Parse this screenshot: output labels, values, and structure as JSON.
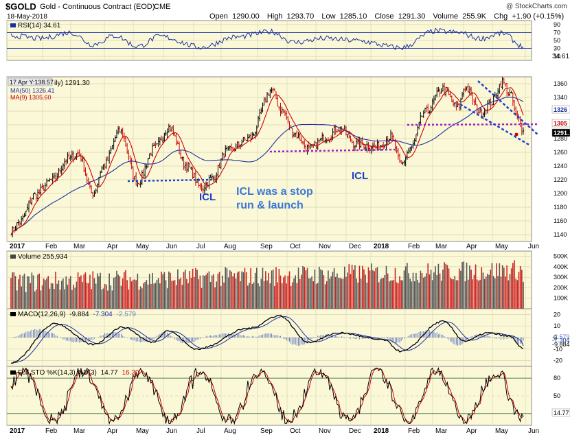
{
  "header": {
    "symbol": "$GOLD",
    "name": "Gold - Continuous Contract (EOD)",
    "exchange": "CME",
    "date": "18-May-2018",
    "watermark": "@ StockCharts.com",
    "open_label": "Open",
    "open": "1290.00",
    "high_label": "High",
    "high": "1293.70",
    "low_label": "Low",
    "low": "1285.10",
    "close_label": "Close",
    "close": "1291.30",
    "volume_label": "Volume",
    "volume": "255.9K",
    "chg_label": "Chg",
    "chg": "+1.90 (+0.15%)"
  },
  "colors": {
    "panel_bg": "#fbf8d8",
    "grid": "#d9d5b0",
    "price_up": "#000000",
    "price_down": "#cc0000",
    "ma50": "#1a2fa0",
    "ma9": "#cc0000",
    "rsi": "#1a2fa0",
    "volume_up": "#555555",
    "volume_down": "#cc2222",
    "annotation_blue": "#1a3fcc",
    "annotation_text": "#3a78d8",
    "magenta": "#a020c0"
  },
  "rsi_panel": {
    "legend": "RSI(14) 34.61",
    "ticks": [
      "90",
      "70",
      "50",
      "30",
      "10"
    ],
    "last": "34.61"
  },
  "price_panel": {
    "legend": "$GOLD (Daily) 1291.30",
    "legend_visible": "ily) 1291.30",
    "tooltip": "17 Apr Y:138.57",
    "ma50_legend": "MA(50) 1326.41",
    "ma9_legend": "MA(9) 1305.60",
    "ticks": [
      "1360",
      "1340",
      "1320",
      "1300",
      "1280",
      "1260",
      "1240",
      "1220",
      "1200",
      "1180",
      "1160",
      "1140"
    ],
    "price_tags": [
      "1326",
      "1305",
      "1291."
    ],
    "annotations": {
      "icl_1": "ICL",
      "icl_2": "ICL",
      "note_line1": "ICL was a stop",
      "note_line2": "run & launch"
    }
  },
  "x_axis": {
    "labels": [
      "2017",
      "Feb",
      "Mar",
      "Apr",
      "May",
      "Jun",
      "Jul",
      "Aug",
      "Sep",
      "Oct",
      "Nov",
      "Dec",
      "2018",
      "Feb",
      "Mar",
      "Apr",
      "May",
      "Jun"
    ]
  },
  "volume_panel": {
    "legend": "Volume 255,934",
    "ticks": [
      "500K",
      "400K",
      "300K",
      "200K",
      "100K"
    ],
    "last": "255934"
  },
  "macd_panel": {
    "legend_prefix": "MACD(12,26,9)",
    "macd": "-9.884",
    "signal": "-7.304",
    "hist": "-2.579",
    "ticks": [
      "20",
      "10",
      "0",
      "-10",
      "-20"
    ],
    "tags": [
      "-2.579",
      "-7.304",
      "-9.884"
    ]
  },
  "sto_panel": {
    "legend_prefix": "Full STO %K(14,3) %D(3)",
    "k": "14.77",
    "d": "16.30",
    "ticks": [
      "80",
      "50",
      "20"
    ],
    "last": "14.77"
  },
  "chart_data": [
    {
      "type": "line",
      "title": "$GOLD Gold - Continuous Contract (EOD) CME",
      "subtitle": "18-May-2018",
      "ylabel": "",
      "ylim": [
        1130,
        1370
      ],
      "grid": true,
      "x_dates": [
        "2017-01",
        "2017-02",
        "2017-03",
        "2017-04",
        "2017-05",
        "2017-06",
        "2017-07",
        "2017-08",
        "2017-09",
        "2017-10",
        "2017-11",
        "2017-12",
        "2018-01",
        "2018-02",
        "2018-03",
        "2018-04",
        "2018-05"
      ],
      "series": [
        {
          "name": "$GOLD (Daily)",
          "x": [
            "2017-01-03",
            "2017-01-25",
            "2017-02-28",
            "2017-03-15",
            "2017-04-18",
            "2017-05-09",
            "2017-06-06",
            "2017-07-10",
            "2017-08-07",
            "2017-09-08",
            "2017-10-06",
            "2017-10-20",
            "2017-11-15",
            "2017-12-12",
            "2018-01-05",
            "2018-01-25",
            "2018-02-09",
            "2018-02-16",
            "2018-03-01",
            "2018-03-20",
            "2018-04-11",
            "2018-04-27",
            "2018-05-10",
            "2018-05-18"
          ],
          "y": [
            1150,
            1215,
            1260,
            1200,
            1295,
            1218,
            1296,
            1210,
            1270,
            1355,
            1265,
            1300,
            1290,
            1240,
            1320,
            1365,
            1310,
            1355,
            1305,
            1325,
            1365,
            1315,
            1320,
            1291.3
          ]
        },
        {
          "name": "MA(50) 1326.41",
          "x": [
            "2017-01-03",
            "2017-03-01",
            "2017-04-20",
            "2017-06-05",
            "2017-07-20",
            "2017-09-15",
            "2017-10-30",
            "2017-12-20",
            "2018-01-25",
            "2018-03-15",
            "2018-04-25",
            "2018-05-18"
          ],
          "y": [
            1175,
            1210,
            1245,
            1255,
            1240,
            1275,
            1295,
            1285,
            1305,
            1325,
            1330,
            1326.41
          ]
        },
        {
          "name": "MA(9) 1305.60",
          "x": [
            "2018-05-18"
          ],
          "y": [
            1305.6
          ]
        }
      ],
      "annotations": [
        {
          "text": "ICL",
          "date": "2017-07-10",
          "value": 1205
        },
        {
          "text": "ICL",
          "date": "2017-12-12",
          "value": 1236
        },
        {
          "text": "ICL was a stop run & launch",
          "date": "2017-08-25"
        }
      ],
      "horizontal_supports": [
        1218,
        1260,
        1298,
        1300
      ]
    },
    {
      "type": "line",
      "title": "RSI(14) 34.61",
      "ylim": [
        0,
        100
      ],
      "levels": [
        70,
        30
      ],
      "series": [
        {
          "name": "RSI(14)",
          "x": [
            "2017-01-03",
            "2017-03-15",
            "2017-04-18",
            "2017-07-10",
            "2017-09-08",
            "2017-12-12",
            "2018-01-25",
            "2018-04-11",
            "2018-05-18"
          ],
          "y": [
            62,
            38,
            68,
            33,
            73,
            30,
            75,
            70,
            34.61
          ]
        }
      ]
    },
    {
      "type": "bar",
      "title": "Volume 255,934",
      "ylim": [
        0,
        550000
      ],
      "series": [
        {
          "name": "Volume",
          "x": [
            "2017-01",
            "2017-03",
            "2017-05",
            "2017-07",
            "2017-09",
            "2017-11",
            "2018-01",
            "2018-03",
            "2018-05-18"
          ],
          "y": [
            180000,
            220000,
            230000,
            240000,
            280000,
            260000,
            300000,
            290000,
            255934
          ]
        }
      ]
    },
    {
      "type": "line",
      "title": "MACD(12,26,9) -9.884, -7.304, -2.579",
      "ylim": [
        -25,
        25
      ],
      "series": [
        {
          "name": "MACD(12,26,9)",
          "x": [
            "2017-01-03",
            "2017-02-20",
            "2017-03-20",
            "2017-04-25",
            "2017-07-10",
            "2017-09-10",
            "2017-10-20",
            "2017-12-12",
            "2018-01-25",
            "2018-03-05",
            "2018-04-15",
            "2018-05-18"
          ],
          "y": [
            -18,
            10,
            -5,
            9,
            -10,
            18,
            -2,
            -12,
            12,
            -5,
            3,
            -9.884
          ]
        },
        {
          "name": "Signal",
          "x": [
            "2018-05-18"
          ],
          "y": [
            -7.304
          ]
        },
        {
          "name": "Histogram",
          "x": [
            "2018-05-18"
          ],
          "y": [
            -2.579
          ]
        }
      ]
    },
    {
      "type": "line",
      "title": "Full STO %K(14,3) %D(3) 14.77, 16.30",
      "ylim": [
        0,
        100
      ],
      "levels": [
        80,
        20
      ],
      "series": [
        {
          "name": "%K(14,3)",
          "x": [
            "2018-05-18"
          ],
          "y": [
            14.77
          ]
        },
        {
          "name": "%D(3)",
          "x": [
            "2018-05-18"
          ],
          "y": [
            16.3
          ]
        }
      ]
    }
  ]
}
